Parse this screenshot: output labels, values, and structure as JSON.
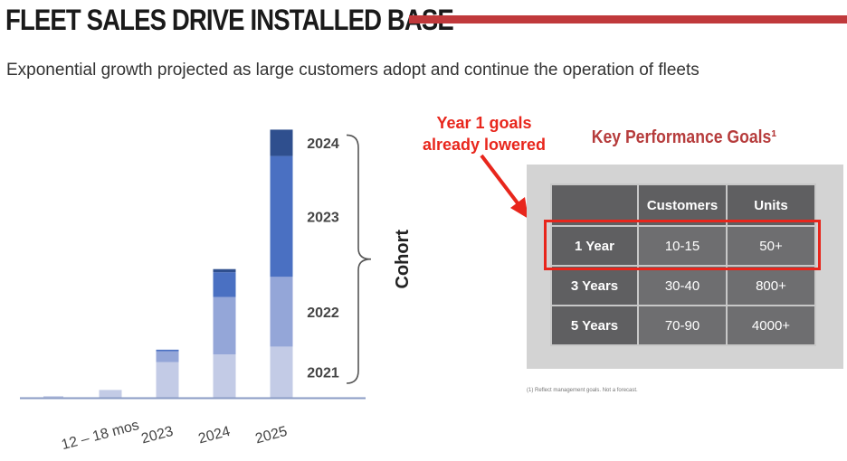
{
  "header": {
    "title": "FLEET SALES DRIVE INSTALLED BASE",
    "subtitle": "Exponential growth projected as large customers adopt and continue the operation of fleets"
  },
  "colors": {
    "accent_rule": "#c0393b",
    "callout_red": "#e8261c",
    "cohort_2021": "#c3cbe6",
    "cohort_2022": "#94a6d8",
    "cohort_2023": "#4a70c2",
    "cohort_2024": "#2f4f8e"
  },
  "chart_data": {
    "type": "bar",
    "stacked": true,
    "categories": [
      "",
      "12 – 18 mos",
      "2023",
      "2024",
      "2025"
    ],
    "series": [
      {
        "name": "2021",
        "values": [
          1,
          5,
          23,
          28,
          33
        ]
      },
      {
        "name": "2022",
        "values": [
          0,
          0,
          7,
          37,
          45
        ]
      },
      {
        "name": "2023",
        "values": [
          0,
          0,
          1,
          16,
          78
        ]
      },
      {
        "name": "2024",
        "values": [
          0,
          0,
          0,
          2,
          17
        ]
      }
    ],
    "ylim": [
      0,
      175
    ],
    "grid": false,
    "legend": "right, bracketed cohort labels",
    "legend_group_label": "Cohort",
    "x_tick_rotation": -15
  },
  "callout": {
    "line1": "Year 1 goals",
    "line2": "already lowered"
  },
  "kpg": {
    "title": "Key Performance Goals¹",
    "headers": [
      "",
      "Customers",
      "Units"
    ],
    "rows": [
      {
        "label": "1 Year",
        "customers": "10-15",
        "units": "50+"
      },
      {
        "label": "3 Years",
        "customers": "30-40",
        "units": "800+"
      },
      {
        "label": "5 Years",
        "customers": "70-90",
        "units": "4000+"
      }
    ],
    "footnote": "(1) Reflect management goals. Not a forecast."
  }
}
